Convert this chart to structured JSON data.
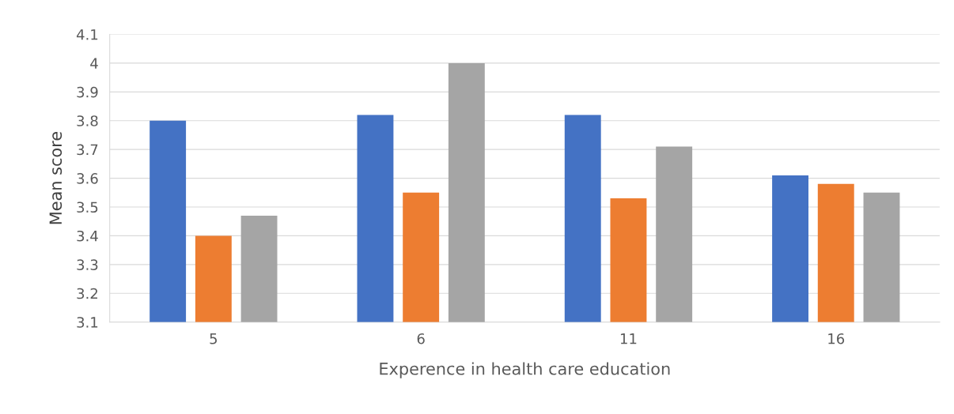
{
  "chart_data": {
    "type": "bar",
    "xlabel": "Experence in health care education",
    "ylabel": "Mean score",
    "categories": [
      "5",
      "6",
      "11",
      "16"
    ],
    "series": [
      {
        "color": "#4472c4",
        "values": [
          3.8,
          3.82,
          3.82,
          3.61
        ]
      },
      {
        "color": "#ed7d31",
        "values": [
          3.4,
          3.55,
          3.53,
          3.58
        ]
      },
      {
        "color": "#a5a5a5",
        "values": [
          3.47,
          4.0,
          3.71,
          3.55
        ]
      }
    ],
    "ylim": [
      3.1,
      4.1
    ],
    "yticks": [
      3.1,
      3.2,
      3.3,
      3.4,
      3.5,
      3.6,
      3.7,
      3.8,
      3.9,
      4,
      4.1
    ],
    "grid": "y",
    "legend": false
  }
}
